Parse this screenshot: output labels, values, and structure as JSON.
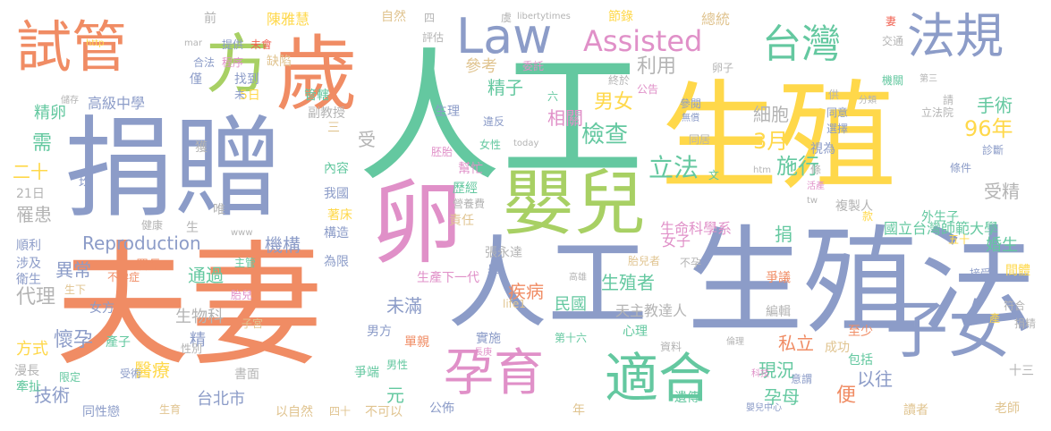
{
  "palette": {
    "blue": "#8c9cc8",
    "orange": "#f08c64",
    "green": "#64c8a0",
    "yellow": "#ffd84a",
    "lime": "#a8d064",
    "pink": "#e090c8",
    "tan": "#e0c490",
    "gray": "#b4b4b4",
    "red": "#f06050"
  },
  "words": [
    {
      "text": "人工",
      "color": "green"
    },
    {
      "text": "生殖",
      "color": "yellow"
    },
    {
      "text": "捐贈",
      "color": "blue"
    },
    {
      "text": "夫妻",
      "color": "orange"
    },
    {
      "text": "生殖法",
      "color": "blue"
    },
    {
      "text": "卵",
      "color": "pink"
    },
    {
      "text": "人工",
      "color": "blue"
    },
    {
      "text": "嬰兒",
      "color": "lime"
    },
    {
      "text": "歲",
      "color": "orange"
    },
    {
      "text": "孕育",
      "color": "pink"
    },
    {
      "text": "適合",
      "color": "green"
    },
    {
      "text": "子女",
      "color": "blue"
    },
    {
      "text": "試管",
      "color": "orange"
    },
    {
      "text": "方",
      "color": "lime"
    },
    {
      "text": "Law",
      "color": "blue"
    },
    {
      "text": "Assisted",
      "color": "pink"
    },
    {
      "text": "台灣",
      "color": "green"
    },
    {
      "text": "法規",
      "color": "blue"
    },
    {
      "text": "立法",
      "color": "green"
    },
    {
      "text": "檢查",
      "color": "green"
    },
    {
      "text": "96年",
      "color": "yellow"
    },
    {
      "text": "3月",
      "color": "yellow"
    },
    {
      "text": "施行",
      "color": "green"
    },
    {
      "text": "精子",
      "color": "green"
    },
    {
      "text": "男女",
      "color": "yellow"
    },
    {
      "text": "相關",
      "color": "pink"
    },
    {
      "text": "參考",
      "color": "tan"
    },
    {
      "text": "利用",
      "color": "gray"
    },
    {
      "text": "細胞",
      "color": "gray"
    },
    {
      "text": "手術",
      "color": "green"
    },
    {
      "text": "受精",
      "color": "gray"
    },
    {
      "text": "精卵",
      "color": "green"
    },
    {
      "text": "高級中學",
      "color": "blue"
    },
    {
      "text": "需",
      "color": "green"
    },
    {
      "text": "Reproduction",
      "color": "blue"
    },
    {
      "text": "罹患",
      "color": "gray"
    },
    {
      "text": "異常",
      "color": "blue"
    },
    {
      "text": "代理",
      "color": "gray"
    },
    {
      "text": "機構",
      "color": "blue"
    },
    {
      "text": "通過",
      "color": "green"
    },
    {
      "text": "疾病",
      "color": "orange"
    },
    {
      "text": "未滿",
      "color": "blue"
    },
    {
      "text": "民國",
      "color": "green"
    },
    {
      "text": "生殖者",
      "color": "green"
    },
    {
      "text": "懷孕",
      "color": "blue"
    },
    {
      "text": "醫療",
      "color": "yellow"
    },
    {
      "text": "技術",
      "color": "blue"
    },
    {
      "text": "台北市",
      "color": "blue"
    },
    {
      "text": "現況",
      "color": "green"
    },
    {
      "text": "孕母",
      "color": "green"
    },
    {
      "text": "以往",
      "color": "blue"
    },
    {
      "text": "便",
      "color": "orange"
    },
    {
      "text": "方式",
      "color": "yellow"
    },
    {
      "text": "精",
      "color": "blue"
    },
    {
      "text": "受",
      "color": "gray"
    },
    {
      "text": "捐",
      "color": "green"
    },
    {
      "text": "私立",
      "color": "orange"
    },
    {
      "text": "元",
      "color": "green"
    },
    {
      "text": "生物科",
      "color": "gray"
    },
    {
      "text": "天主教達人",
      "color": "gray"
    },
    {
      "text": "陳雅慧",
      "color": "yellow"
    },
    {
      "text": "節錄",
      "color": "yellow"
    },
    {
      "text": "總統",
      "color": "tan"
    },
    {
      "text": "國立台灣師範大學",
      "color": "green"
    },
    {
      "text": "生命科學系",
      "color": "pink"
    },
    {
      "text": "外生子",
      "color": "green"
    },
    {
      "text": "婚生",
      "color": "green"
    },
    {
      "text": "女子",
      "color": "pink"
    },
    {
      "text": "二十",
      "color": "yellow"
    },
    {
      "text": "21日",
      "color": "gray"
    },
    {
      "text": "順利",
      "color": "blue"
    },
    {
      "text": "涉及",
      "color": "blue"
    },
    {
      "text": "衛生",
      "color": "blue"
    },
    {
      "text": "生下",
      "color": "tan"
    },
    {
      "text": "女方",
      "color": "blue"
    },
    {
      "text": "產子",
      "color": "green"
    },
    {
      "text": "漫長",
      "color": "gray"
    },
    {
      "text": "牽扯",
      "color": "green"
    },
    {
      "text": "限定",
      "color": "green"
    },
    {
      "text": "受術",
      "color": "blue"
    },
    {
      "text": "同性戀",
      "color": "blue"
    },
    {
      "text": "生育",
      "color": "tan"
    },
    {
      "text": "書面",
      "color": "gray"
    },
    {
      "text": "以自然",
      "color": "tan"
    },
    {
      "text": "四十",
      "color": "tan"
    },
    {
      "text": "不可以",
      "color": "tan"
    },
    {
      "text": "公佈",
      "color": "blue"
    },
    {
      "text": "年",
      "color": "tan"
    },
    {
      "text": "讀者",
      "color": "tan"
    },
    {
      "text": "老師",
      "color": "tan"
    },
    {
      "text": "遺傳",
      "color": "green"
    },
    {
      "text": "包括",
      "color": "green"
    },
    {
      "text": "成功",
      "color": "tan"
    },
    {
      "text": "至少",
      "color": "orange"
    },
    {
      "text": "十三",
      "color": "gray"
    },
    {
      "text": "編輯",
      "color": "gray"
    },
    {
      "text": "爭議",
      "color": "orange"
    },
    {
      "text": "符合",
      "color": "gray"
    },
    {
      "text": "間體",
      "color": "yellow"
    },
    {
      "text": "接受",
      "color": "blue"
    },
    {
      "text": "產",
      "color": "yellow"
    },
    {
      "text": "捐精",
      "color": "gray"
    },
    {
      "text": "五十",
      "color": "yellow"
    },
    {
      "text": "實施",
      "color": "blue"
    },
    {
      "text": "單親",
      "color": "orange"
    },
    {
      "text": "男方",
      "color": "blue"
    },
    {
      "text": "男性",
      "color": "green"
    },
    {
      "text": "爭端",
      "color": "green"
    },
    {
      "text": "心理",
      "color": "green"
    },
    {
      "text": "資料",
      "color": "gray"
    },
    {
      "text": "第十六",
      "color": "green"
    },
    {
      "text": "倫理",
      "color": "gray"
    },
    {
      "text": "科技",
      "color": "pink"
    },
    {
      "text": "意謂",
      "color": "blue"
    },
    {
      "text": "嬰兒中心",
      "color": "blue"
    },
    {
      "text": "張永達",
      "color": "gray"
    },
    {
      "text": "舉",
      "color": "blue"
    },
    {
      "text": "生產下一代",
      "color": "pink"
    },
    {
      "text": "胎兒者",
      "color": "tan"
    },
    {
      "text": "不孕",
      "color": "gray"
    },
    {
      "text": "高雄",
      "color": "gray"
    },
    {
      "text": "life1",
      "color": "tan"
    },
    {
      "text": "長庚",
      "color": "pink"
    },
    {
      "text": "為限",
      "color": "blue"
    },
    {
      "text": "構造",
      "color": "blue"
    },
    {
      "text": "主管",
      "color": "green"
    },
    {
      "text": "署長",
      "color": "orange"
    },
    {
      "text": "不孕症",
      "color": "orange"
    },
    {
      "text": "胎兒",
      "color": "pink"
    },
    {
      "text": "子宮",
      "color": "tan"
    },
    {
      "text": "性別",
      "color": "gray"
    },
    {
      "text": "歷經",
      "color": "green"
    },
    {
      "text": "營養費",
      "color": "gray"
    },
    {
      "text": "責任",
      "color": "tan"
    },
    {
      "text": "著床",
      "color": "yellow"
    },
    {
      "text": "複製人",
      "color": "gray"
    },
    {
      "text": "我國",
      "color": "blue"
    },
    {
      "text": "內容",
      "color": "green"
    },
    {
      "text": "幫忙",
      "color": "pink"
    },
    {
      "text": "獲",
      "color": "gray"
    },
    {
      "text": "均",
      "color": "blue"
    },
    {
      "text": "健康",
      "color": "gray"
    },
    {
      "text": "唯",
      "color": "gray"
    },
    {
      "text": "www",
      "color": "gray"
    },
    {
      "text": "儲存",
      "color": "gray"
    },
    {
      "text": "胚胎",
      "color": "pink"
    },
    {
      "text": "女性",
      "color": "green"
    },
    {
      "text": "today",
      "color": "gray"
    },
    {
      "text": "違反",
      "color": "blue"
    },
    {
      "text": "副教授",
      "color": "gray"
    },
    {
      "text": "管轄",
      "color": "green"
    },
    {
      "text": "缺陷",
      "color": "tan"
    },
    {
      "text": "找到",
      "color": "blue"
    },
    {
      "text": "5日",
      "color": "yellow"
    },
    {
      "text": "程序",
      "color": "pink"
    },
    {
      "text": "合法",
      "color": "blue"
    },
    {
      "text": "僅",
      "color": "blue"
    },
    {
      "text": "前",
      "color": "gray"
    },
    {
      "text": "提供",
      "color": "blue"
    },
    {
      "text": "未會",
      "color": "red"
    },
    {
      "text": "http",
      "color": "yellow"
    },
    {
      "text": "mar",
      "color": "gray"
    },
    {
      "text": "自然",
      "color": "tan"
    },
    {
      "text": "四",
      "color": "gray"
    },
    {
      "text": "評估",
      "color": "gray"
    },
    {
      "text": "虞",
      "color": "gray"
    },
    {
      "text": "libertytimes",
      "color": "gray"
    },
    {
      "text": "委託",
      "color": "pink"
    },
    {
      "text": "公告",
      "color": "pink"
    },
    {
      "text": "終於",
      "color": "gray"
    },
    {
      "text": "六",
      "color": "green"
    },
    {
      "text": "參閱",
      "color": "blue"
    },
    {
      "text": "無償",
      "color": "blue"
    },
    {
      "text": "卵子",
      "color": "gray"
    },
    {
      "text": "妻",
      "color": "red"
    },
    {
      "text": "交通",
      "color": "gray"
    },
    {
      "text": "機關",
      "color": "green"
    },
    {
      "text": "第三",
      "color": "gray"
    },
    {
      "text": "分類",
      "color": "gray"
    },
    {
      "text": "供",
      "color": "gray"
    },
    {
      "text": "同意",
      "color": "blue"
    },
    {
      "text": "選擇",
      "color": "blue"
    },
    {
      "text": "請",
      "color": "gray"
    },
    {
      "text": "立法院",
      "color": "gray"
    },
    {
      "text": "診斷",
      "color": "blue"
    },
    {
      "text": "條件",
      "color": "blue"
    },
    {
      "text": "視為",
      "color": "blue"
    },
    {
      "text": "同居",
      "color": "gray"
    },
    {
      "text": "htm",
      "color": "gray"
    },
    {
      "text": "條",
      "color": "gray"
    },
    {
      "text": "活產",
      "color": "pink"
    },
    {
      "text": "tw",
      "color": "gray"
    },
    {
      "text": "文",
      "color": "green"
    },
    {
      "text": "款",
      "color": "yellow"
    },
    {
      "text": "生理",
      "color": "blue"
    },
    {
      "text": "三",
      "color": "tan"
    },
    {
      "text": "生",
      "color": "gray"
    },
    {
      "text": "未",
      "color": "blue"
    }
  ]
}
